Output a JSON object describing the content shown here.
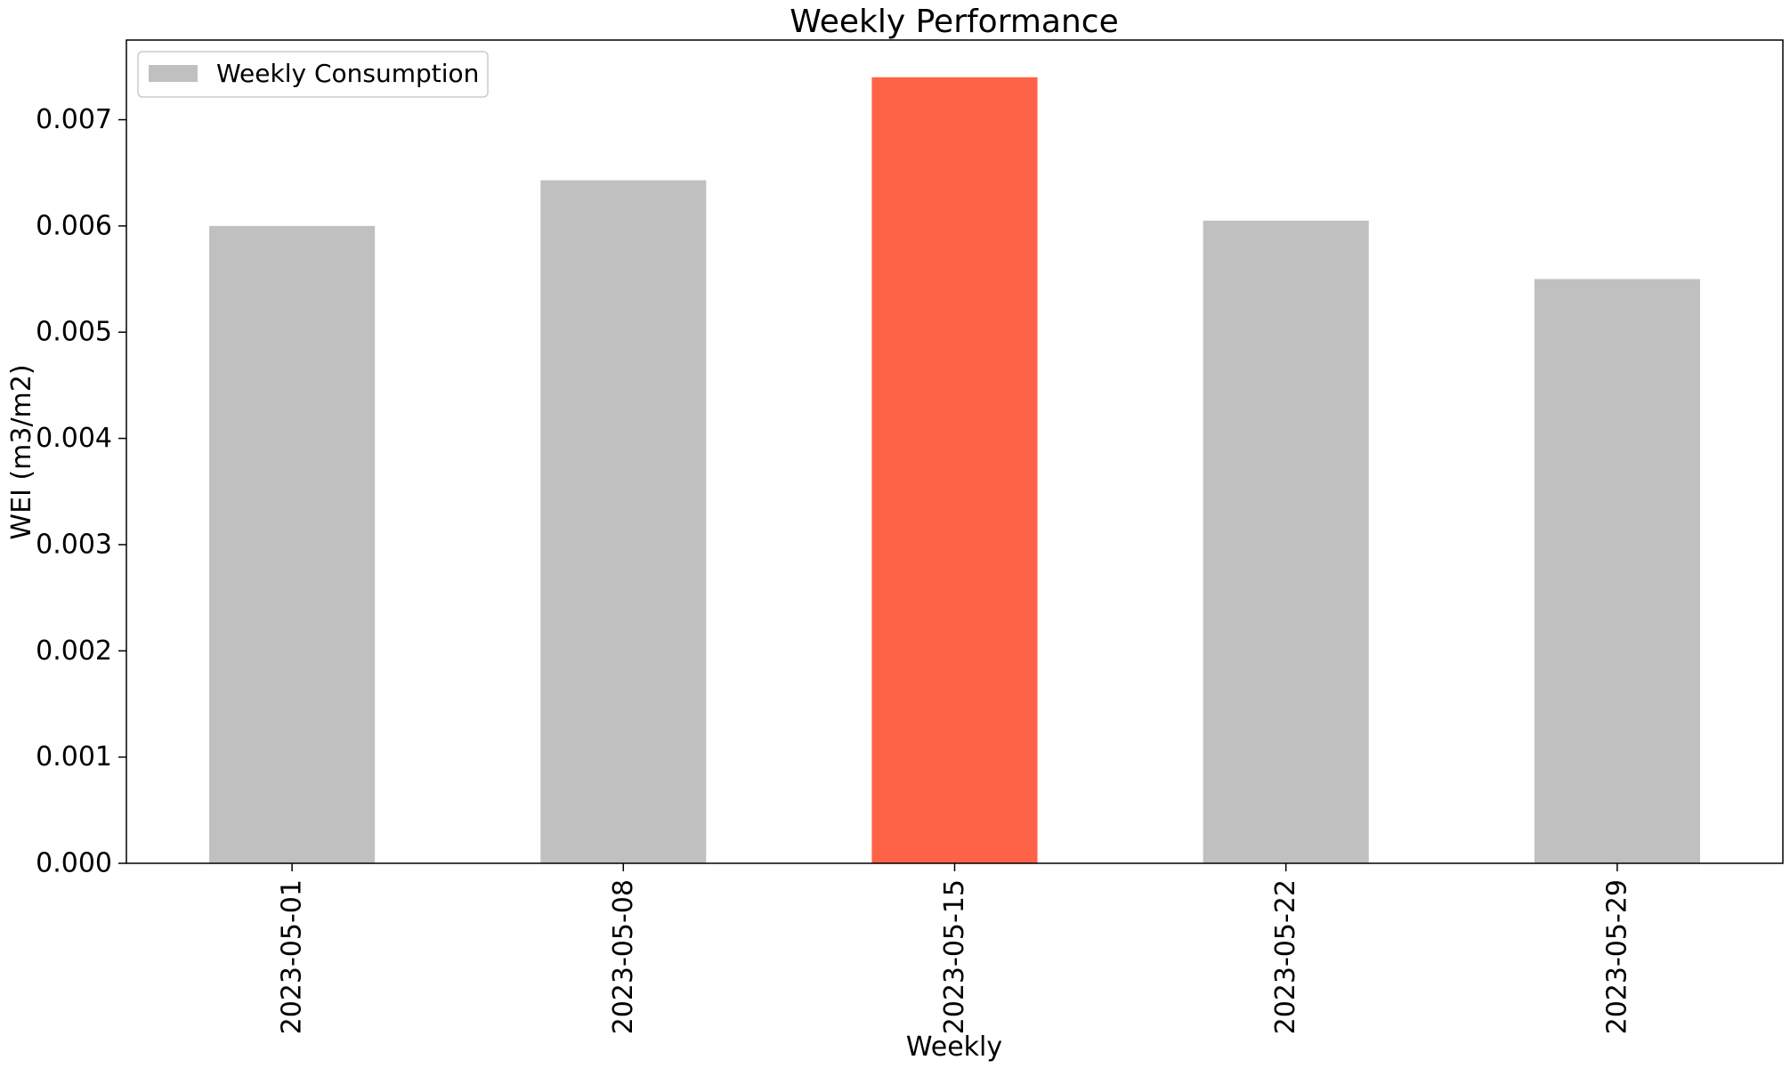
{
  "chart_data": {
    "type": "bar",
    "title": "Weekly Performance",
    "xlabel": "Weekly",
    "ylabel": "WEI (m3/m2)",
    "categories": [
      "2023-05-01",
      "2023-05-08",
      "2023-05-15",
      "2023-05-22",
      "2023-05-29"
    ],
    "series": [
      {
        "name": "Weekly Consumption",
        "values": [
          0.006,
          0.00643,
          0.0074,
          0.00605,
          0.0055
        ]
      }
    ],
    "bar_colors": [
      "#c0c0c0",
      "#c0c0c0",
      "#ff6347",
      "#c0c0c0",
      "#c0c0c0"
    ],
    "legend_color": "#c0c0c0",
    "highlight_color": "#ff6347",
    "ylim": [
      0,
      0.00775
    ],
    "yticks": [
      0.0,
      0.001,
      0.002,
      0.003,
      0.004,
      0.005,
      0.006,
      0.007
    ],
    "ytick_labels": [
      "0.000",
      "0.001",
      "0.002",
      "0.003",
      "0.004",
      "0.005",
      "0.006",
      "0.007"
    ],
    "grid": false,
    "legend_position": "upper-left"
  }
}
